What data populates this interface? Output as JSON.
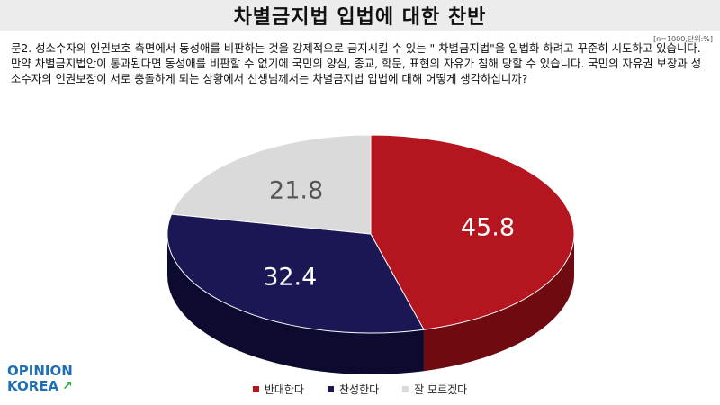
{
  "title": "차별금지법 입법에 대한 찬반",
  "sample_note": "[n=1000,단위:%]",
  "question": "문2. 성소수자의 인권보호 측면에서 동성애를 비판하는 것을 강제적으로 금지시킬 수 있는 \" 차별금지법\"을 입법화 하려고 꾸준히 시도하고 있습니다. 만약 차별금지법안이 통과된다면 동성애를 비판할 수 없기에 국민의 양심, 종교, 학문, 표현의 자유가 침해 당할 수 있습니다. 국민의 자유권 보장과 성소수자의 인권보장이 서로 충돌하게 되는 상황에서 선생님께서는 차별금지법 입법에 대해 어떻게 생각하십니까?",
  "logo": {
    "line1": "OPINION",
    "line2": "KOREA"
  },
  "chart_data": {
    "type": "pie",
    "style": "3d",
    "categories": [
      "반대한다",
      "찬성한다",
      "잘 모르겠다"
    ],
    "values": [
      45.8,
      32.4,
      21.8
    ],
    "labels": [
      "45.8",
      "32.4",
      "21.8"
    ],
    "colors": [
      "#b5151f",
      "#1b1654",
      "#dadada"
    ],
    "side_colors": [
      "#6e0a10",
      "#0d0a30",
      "#9a9a9a"
    ],
    "label_colors": [
      "#ffffff",
      "#ffffff",
      "#555555"
    ],
    "legend_placement": "bottom"
  }
}
